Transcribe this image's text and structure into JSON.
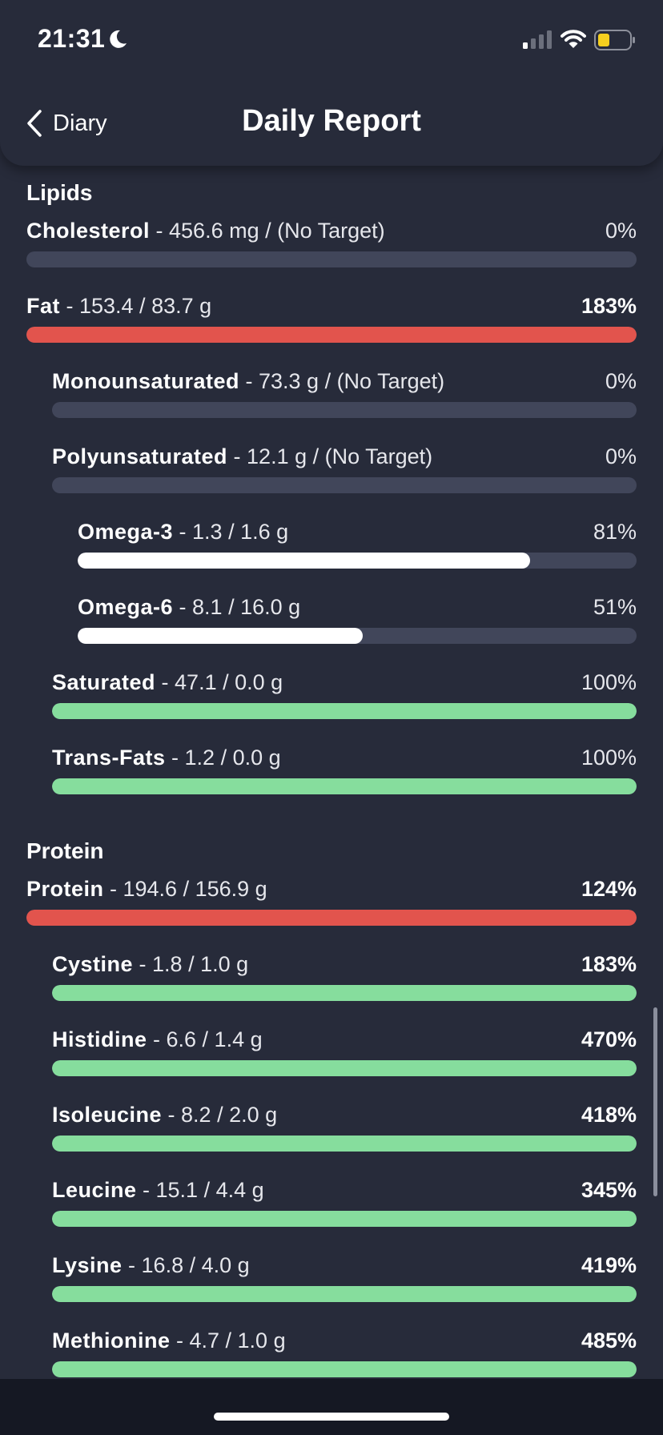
{
  "status_bar": {
    "time": "21:31"
  },
  "nav": {
    "back_label": "Diary",
    "title": "Daily Report"
  },
  "sections": [
    {
      "title": "Lipids",
      "rows": [
        {
          "name": "Cholesterol",
          "amount": " - 456.6 mg / (No Target)",
          "percent": "0%",
          "fill_fraction": 0,
          "color": "#41465a",
          "indent": 0,
          "emphasis": false
        },
        {
          "name": "Fat",
          "amount": " - 153.4 / 83.7 g",
          "percent": "183%",
          "fill_fraction": 1,
          "color": "#e2544d",
          "indent": 0,
          "emphasis": true
        },
        {
          "name": "Monounsaturated",
          "amount": " - 73.3 g / (No Target)",
          "percent": "0%",
          "fill_fraction": 0,
          "color": "#41465a",
          "indent": 1,
          "emphasis": false
        },
        {
          "name": "Polyunsaturated",
          "amount": " - 12.1 g / (No Target)",
          "percent": "0%",
          "fill_fraction": 0,
          "color": "#41465a",
          "indent": 1,
          "emphasis": false
        },
        {
          "name": "Omega-3",
          "amount": " - 1.3 / 1.6 g",
          "percent": "81%",
          "fill_fraction": 0.81,
          "color": "#ffffff",
          "indent": 2,
          "emphasis": false
        },
        {
          "name": "Omega-6",
          "amount": " - 8.1 / 16.0 g",
          "percent": "51%",
          "fill_fraction": 0.51,
          "color": "#ffffff",
          "indent": 2,
          "emphasis": false
        },
        {
          "name": "Saturated",
          "amount": " - 47.1 / 0.0 g",
          "percent": "100%",
          "fill_fraction": 1,
          "color": "#86dd9d",
          "indent": 1,
          "emphasis": false
        },
        {
          "name": "Trans-Fats",
          "amount": " - 1.2 / 0.0 g",
          "percent": "100%",
          "fill_fraction": 1,
          "color": "#86dd9d",
          "indent": 1,
          "emphasis": false
        }
      ]
    },
    {
      "title": "Protein",
      "rows": [
        {
          "name": "Protein",
          "amount": " - 194.6 / 156.9 g",
          "percent": "124%",
          "fill_fraction": 1,
          "color": "#e2544d",
          "indent": 0,
          "emphasis": true
        },
        {
          "name": "Cystine",
          "amount": " - 1.8 / 1.0 g",
          "percent": "183%",
          "fill_fraction": 1,
          "color": "#86dd9d",
          "indent": 1,
          "emphasis": true
        },
        {
          "name": "Histidine",
          "amount": " - 6.6 / 1.4 g",
          "percent": "470%",
          "fill_fraction": 1,
          "color": "#86dd9d",
          "indent": 1,
          "emphasis": true
        },
        {
          "name": "Isoleucine",
          "amount": " - 8.2 / 2.0 g",
          "percent": "418%",
          "fill_fraction": 1,
          "color": "#86dd9d",
          "indent": 1,
          "emphasis": true
        },
        {
          "name": "Leucine",
          "amount": " - 15.1 / 4.4 g",
          "percent": "345%",
          "fill_fraction": 1,
          "color": "#86dd9d",
          "indent": 1,
          "emphasis": true
        },
        {
          "name": "Lysine",
          "amount": " - 16.8 / 4.0 g",
          "percent": "419%",
          "fill_fraction": 1,
          "color": "#86dd9d",
          "indent": 1,
          "emphasis": true
        },
        {
          "name": "Methionine",
          "amount": " - 4.7 / 1.0 g",
          "percent": "485%",
          "fill_fraction": 1,
          "color": "#86dd9d",
          "indent": 1,
          "emphasis": true
        }
      ]
    }
  ]
}
